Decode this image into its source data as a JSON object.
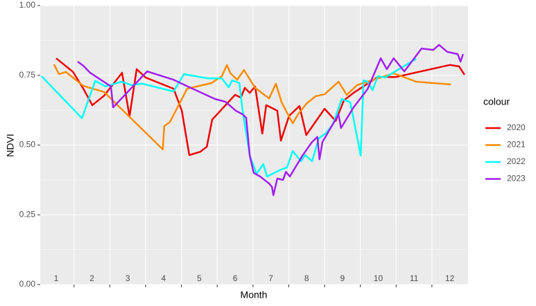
{
  "chart_data": {
    "type": "line",
    "x_label": "Month",
    "y_label": "NDVI",
    "legend_title": "colour",
    "xlim": [
      0.554,
      12.51
    ],
    "ylim": [
      0,
      1
    ],
    "xticks": [
      1,
      2,
      3,
      4,
      5,
      6,
      7,
      8,
      9,
      10,
      11,
      12
    ],
    "yticks": [
      {
        "value": 0,
        "label": "0.00"
      },
      {
        "value": 0.25,
        "label": "0.25"
      },
      {
        "value": 0.5,
        "label": "0.50"
      },
      {
        "value": 0.75,
        "label": "0.75"
      },
      {
        "value": 1,
        "label": "1.00"
      }
    ],
    "grid": true,
    "series": [
      {
        "name": "2020",
        "color": "#ee0000",
        "x": [
          1.0,
          1.47,
          1.76,
          2.01,
          2.34,
          2.84,
          3.05,
          3.25,
          3.5,
          4.28,
          4.51,
          4.72,
          5.03,
          5.21,
          5.36,
          6.0,
          6.16,
          6.27,
          6.41,
          6.56,
          6.76,
          6.87,
          7.18,
          7.28,
          7.51,
          7.8,
          7.99,
          8.5,
          8.81,
          9.04,
          9.31,
          9.99,
          10.5,
          12.0,
          12.26,
          12.41
        ],
        "values": [
          0.811,
          0.762,
          0.702,
          0.643,
          0.677,
          0.759,
          0.603,
          0.772,
          0.742,
          0.702,
          0.623,
          0.464,
          0.476,
          0.494,
          0.591,
          0.68,
          0.67,
          0.705,
          0.687,
          0.71,
          0.541,
          0.643,
          0.623,
          0.516,
          0.605,
          0.64,
          0.536,
          0.63,
          0.586,
          0.66,
          0.687,
          0.744,
          0.744,
          0.787,
          0.782,
          0.752
        ]
      },
      {
        "name": "2021",
        "color": "#ff8c00",
        "x": [
          0.94,
          1.08,
          1.27,
          1.76,
          2.34,
          3.98,
          4.02,
          4.18,
          4.66,
          5.34,
          5.63,
          5.77,
          5.87,
          6.06,
          6.25,
          6.56,
          6.95,
          7.14,
          7.3,
          7.61,
          7.76,
          7.99,
          8.25,
          8.5,
          8.89,
          9.12,
          9.41,
          9.7,
          10.43,
          11.06,
          12.03
        ],
        "values": [
          0.789,
          0.754,
          0.762,
          0.712,
          0.69,
          0.484,
          0.568,
          0.583,
          0.702,
          0.722,
          0.747,
          0.787,
          0.757,
          0.734,
          0.769,
          0.705,
          0.667,
          0.72,
          0.653,
          0.578,
          0.61,
          0.648,
          0.675,
          0.682,
          0.727,
          0.68,
          0.715,
          0.727,
          0.757,
          0.727,
          0.717
        ]
      },
      {
        "name": "2022",
        "color": "#00ffff",
        "x": [
          0.59,
          1.72,
          2.09,
          2.38,
          2.82,
          3.11,
          3.4,
          4.28,
          4.57,
          5.24,
          5.63,
          5.82,
          5.92,
          6.12,
          6.21,
          6.41,
          6.6,
          6.79,
          6.89,
          7.28,
          7.45,
          7.61,
          7.84,
          7.96,
          8.15,
          8.34,
          8.54,
          8.73,
          8.98,
          9.22,
          9.51,
          9.59,
          9.7,
          9.84,
          9.99,
          10.19,
          11.06
        ],
        "values": [
          0.747,
          0.596,
          0.73,
          0.71,
          0.727,
          0.715,
          0.72,
          0.692,
          0.754,
          0.739,
          0.739,
          0.707,
          0.732,
          0.722,
          0.623,
          0.462,
          0.397,
          0.432,
          0.387,
          0.412,
          0.419,
          0.479,
          0.442,
          0.464,
          0.442,
          0.524,
          0.543,
          0.573,
          0.665,
          0.653,
          0.462,
          0.732,
          0.727,
          0.697,
          0.747,
          0.742,
          0.809
        ]
      },
      {
        "name": "2023",
        "color": "#a020f0",
        "x": [
          1.6,
          1.76,
          1.95,
          2.53,
          2.59,
          3.54,
          4.28,
          4.76,
          5.44,
          5.73,
          6.02,
          6.21,
          6.31,
          6.41,
          6.52,
          6.7,
          6.95,
          7.03,
          7.07,
          7.18,
          7.34,
          7.42,
          7.53,
          7.88,
          8.15,
          8.3,
          8.36,
          8.44,
          8.67,
          8.89,
          8.96,
          9.31,
          9.7,
          10.07,
          10.24,
          10.43,
          10.73,
          11.21,
          11.54,
          11.7,
          11.93,
          12.22,
          12.3,
          12.37
        ],
        "values": [
          0.799,
          0.784,
          0.759,
          0.71,
          0.635,
          0.764,
          0.734,
          0.705,
          0.665,
          0.655,
          0.623,
          0.61,
          0.598,
          0.462,
          0.4,
          0.387,
          0.362,
          0.35,
          0.32,
          0.38,
          0.375,
          0.404,
          0.387,
          0.462,
          0.511,
          0.529,
          0.449,
          0.511,
          0.561,
          0.61,
          0.561,
          0.635,
          0.7,
          0.811,
          0.772,
          0.811,
          0.764,
          0.846,
          0.841,
          0.859,
          0.834,
          0.826,
          0.799,
          0.826
        ]
      }
    ]
  }
}
